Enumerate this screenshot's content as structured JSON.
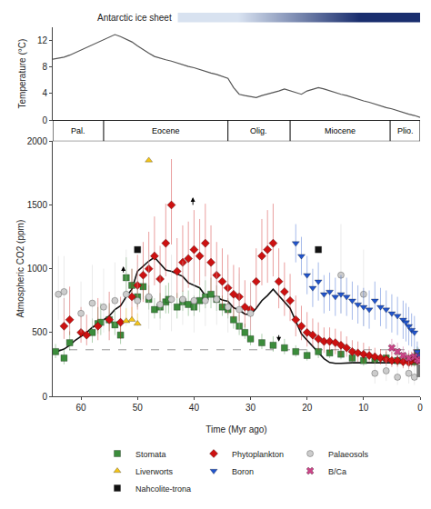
{
  "chart_data": [
    {
      "type": "gradient",
      "annotations": [
        "Antarctic ice sheet"
      ],
      "colors": [
        "#d8e2f0",
        "#1a2e6e"
      ]
    },
    {
      "type": "line",
      "ylabel": "Temperature (°C)",
      "x": [
        65,
        64,
        63,
        62,
        61,
        60,
        59,
        58,
        57,
        56,
        55,
        54,
        53,
        52,
        51,
        50,
        49,
        48,
        47,
        46,
        45,
        44,
        43,
        42,
        41,
        40,
        39,
        38,
        37,
        36,
        35,
        34,
        33,
        32,
        31,
        30,
        29,
        28,
        27,
        26,
        25,
        24,
        23,
        22,
        21,
        20,
        19,
        18,
        17,
        16,
        15,
        14,
        13,
        12,
        11,
        10,
        9,
        8,
        7,
        6,
        5,
        4,
        3,
        2,
        1,
        0
      ],
      "values": [
        9.2,
        9.3,
        9.5,
        9.8,
        10.2,
        10.6,
        11.0,
        11.3,
        11.8,
        12.2,
        12.6,
        12.9,
        12.6,
        12.2,
        11.8,
        11.2,
        10.6,
        10.1,
        9.6,
        9.3,
        9.1,
        8.9,
        8.6,
        8.3,
        8.1,
        7.9,
        7.6,
        7.3,
        7.1,
        6.9,
        6.6,
        6.3,
        4.9,
        3.9,
        3.7,
        3.5,
        3.4,
        3.7,
        3.9,
        4.1,
        4.4,
        4.7,
        4.4,
        4.1,
        3.9,
        4.4,
        4.7,
        4.9,
        4.7,
        4.4,
        4.1,
        3.9,
        3.7,
        3.4,
        3.1,
        2.9,
        2.7,
        2.4,
        2.1,
        1.9,
        1.7,
        1.4,
        1.1,
        0.9,
        0.7,
        0.4
      ],
      "color": "#555555",
      "xlim": [
        65,
        0
      ],
      "ylim": [
        0,
        14
      ],
      "yticks": [
        0,
        4,
        8,
        12
      ],
      "tick_labels": "y",
      "grid": false
    },
    {
      "type": "band",
      "categories": [
        "Pal.",
        "Eocene",
        "Olig.",
        "Miocene",
        "Plio."
      ],
      "bins": [
        65,
        56,
        34,
        23,
        5.3,
        0
      ],
      "xlim": [
        65,
        0
      ]
    },
    {
      "type": "scatter",
      "xlabel": "Time (Myr ago)",
      "ylabel": "Atmospheric CO2 (ppm)",
      "xlim": [
        65,
        0
      ],
      "ylim": [
        0,
        2000
      ],
      "xticks": [
        60,
        50,
        40,
        30,
        20,
        10,
        0
      ],
      "yticks": [
        0,
        500,
        1000,
        1500,
        2000
      ],
      "grid": false,
      "legend": "bottom",
      "series": [
        {
          "type": "line",
          "color": "#111111",
          "x": [
            65,
            64,
            63,
            62,
            61,
            60,
            59,
            58,
            57,
            56,
            55,
            54,
            53,
            52,
            51,
            50,
            49,
            48,
            47,
            46,
            45,
            44,
            43,
            42,
            41,
            40,
            39,
            38,
            37,
            36,
            35,
            34,
            33,
            32,
            31,
            30,
            29,
            28,
            27,
            26,
            25,
            24,
            23,
            22,
            21,
            20,
            19,
            18,
            17,
            16,
            15,
            14,
            13,
            12,
            11,
            10,
            9,
            8,
            7,
            6,
            5,
            4,
            3,
            2,
            1,
            0.5,
            0
          ],
          "values": [
            350,
            355,
            370,
            400,
            440,
            470,
            500,
            540,
            570,
            595,
            630,
            680,
            710,
            780,
            840,
            980,
            1020,
            1060,
            1090,
            1040,
            990,
            980,
            960,
            940,
            890,
            870,
            850,
            790,
            790,
            775,
            755,
            745,
            695,
            675,
            645,
            640,
            690,
            750,
            790,
            840,
            790,
            740,
            690,
            590,
            490,
            440,
            390,
            340,
            295,
            265,
            258,
            258,
            263,
            263,
            263,
            263,
            263,
            263,
            263,
            263,
            263,
            263,
            263,
            263,
            263,
            263,
            263
          ]
        },
        {
          "name": "Stomata",
          "type": "scatter",
          "marker": "square",
          "color": "#3b8c3b",
          "x": [
            64.5,
            63,
            62,
            58,
            57,
            56.5,
            55,
            54,
            53,
            52,
            51,
            50,
            49,
            48,
            47,
            46,
            45,
            44.5,
            43,
            42,
            41,
            40,
            39,
            38,
            37,
            36,
            35,
            34,
            33,
            32,
            31,
            30,
            28,
            26,
            24,
            22,
            20,
            18,
            16,
            14,
            12,
            10,
            8,
            6,
            4,
            2,
            1,
            0.5
          ],
          "values": [
            350,
            300,
            420,
            500,
            570,
            580,
            600,
            560,
            480,
            930,
            870,
            780,
            860,
            760,
            680,
            700,
            740,
            760,
            700,
            740,
            720,
            700,
            750,
            780,
            800,
            760,
            700,
            680,
            600,
            550,
            500,
            450,
            420,
            400,
            380,
            350,
            320,
            350,
            340,
            330,
            300,
            280,
            290,
            300,
            280,
            290,
            270,
            340
          ],
          "error_plus": [
            60,
            70,
            90,
            110,
            130,
            150,
            130,
            110,
            90,
            160,
            130,
            110,
            130,
            110,
            90,
            110,
            130,
            130,
            110,
            90,
            110,
            90,
            110,
            130,
            130,
            110,
            90,
            90,
            90,
            90,
            70,
            70,
            70,
            70,
            70,
            50,
            50,
            70,
            50,
            50,
            50,
            50,
            50,
            50,
            50,
            50,
            50,
            50
          ],
          "error_minus": [
            50,
            50,
            60,
            80,
            80,
            100,
            90,
            80,
            70,
            120,
            100,
            80,
            100,
            80,
            70,
            90,
            90,
            110,
            90,
            70,
            90,
            70,
            90,
            90,
            110,
            90,
            70,
            70,
            70,
            70,
            50,
            50,
            50,
            50,
            50,
            40,
            40,
            50,
            40,
            40,
            40,
            40,
            40,
            40,
            40,
            40,
            40,
            40
          ]
        },
        {
          "name": "Phytoplankton",
          "type": "scatter",
          "marker": "diamond",
          "color": "#cc1111",
          "x": [
            63,
            62,
            60,
            59,
            57,
            55,
            53,
            51,
            50,
            49,
            48,
            47,
            46,
            45,
            44,
            43,
            42,
            41,
            40,
            39,
            38,
            37,
            36,
            35,
            34,
            33,
            32,
            31,
            30,
            29,
            28,
            27,
            26,
            25,
            24,
            23,
            22,
            21,
            20,
            19,
            18,
            17,
            16,
            15,
            14,
            13,
            12,
            11,
            10,
            9,
            8,
            7,
            6,
            5,
            4,
            3,
            2,
            1.5,
            1,
            0.5,
            0.2
          ],
          "values": [
            550,
            600,
            500,
            480,
            550,
            600,
            580,
            780,
            870,
            950,
            1000,
            1100,
            920,
            1200,
            1500,
            980,
            1050,
            1080,
            1150,
            1100,
            1200,
            1050,
            950,
            900,
            850,
            800,
            780,
            700,
            680,
            900,
            1100,
            1150,
            1200,
            900,
            820,
            750,
            600,
            550,
            500,
            480,
            450,
            430,
            430,
            420,
            400,
            380,
            350,
            340,
            330,
            320,
            310,
            300,
            290,
            280,
            280,
            270,
            265,
            280,
            290,
            280,
            300
          ],
          "error_plus": [
            220,
            260,
            200,
            160,
            220,
            220,
            200,
            220,
            240,
            260,
            290,
            310,
            260,
            310,
            360,
            260,
            290,
            290,
            310,
            290,
            310,
            290,
            260,
            260,
            260,
            230,
            230,
            210,
            210,
            260,
            290,
            310,
            310,
            260,
            230,
            210,
            190,
            160,
            160,
            130,
            130,
            110,
            110,
            110,
            110,
            90,
            90,
            90,
            90,
            70,
            70,
            70,
            70,
            70,
            70,
            70,
            70,
            70,
            70,
            70,
            70
          ],
          "error_minus": [
            100,
            120,
            80,
            80,
            110,
            160,
            130,
            160,
            190,
            210,
            210,
            230,
            210,
            260,
            310,
            210,
            230,
            230,
            260,
            230,
            260,
            230,
            210,
            210,
            210,
            190,
            190,
            160,
            160,
            210,
            230,
            260,
            260,
            210,
            190,
            160,
            130,
            110,
            110,
            90,
            90,
            90,
            90,
            90,
            90,
            70,
            70,
            70,
            70,
            50,
            50,
            50,
            50,
            50,
            50,
            50,
            50,
            50,
            50,
            50,
            50
          ]
        },
        {
          "name": "Palaeosols",
          "type": "scatter",
          "marker": "circle",
          "color": "#cccccc",
          "x": [
            64,
            63,
            60,
            58,
            56,
            54,
            52,
            50,
            48,
            46,
            44,
            42,
            40,
            38,
            36,
            34,
            32,
            30,
            14,
            10,
            8,
            6,
            4,
            2,
            1
          ],
          "values": [
            800,
            820,
            650,
            730,
            700,
            750,
            800,
            750,
            780,
            720,
            760,
            760,
            750,
            750,
            760,
            700,
            680,
            650,
            950,
            800,
            180,
            200,
            150,
            180,
            150
          ],
          "error_plus": [
            300,
            280,
            250,
            300,
            300,
            300,
            350,
            300,
            350,
            300,
            350,
            300,
            350,
            300,
            300,
            300,
            280,
            250,
            400,
            350,
            100,
            100,
            80,
            100,
            80
          ],
          "error_minus": [
            200,
            180,
            150,
            200,
            200,
            200,
            250,
            200,
            250,
            200,
            250,
            200,
            250,
            200,
            200,
            200,
            180,
            150,
            300,
            250,
            80,
            80,
            60,
            80,
            60
          ]
        },
        {
          "name": "Liverworts",
          "type": "scatter",
          "marker": "triangle-up",
          "color": "#f5c518",
          "x": [
            52,
            51,
            50,
            48
          ],
          "values": [
            590,
            600,
            570,
            1850
          ],
          "error_plus": [
            100,
            100,
            80,
            0
          ],
          "error_minus": [
            0,
            0,
            0,
            0
          ]
        },
        {
          "name": "Boron",
          "type": "scatter",
          "marker": "triangle-down",
          "color": "#2255cc",
          "x": [
            22,
            21,
            20,
            19,
            18,
            17,
            16,
            15,
            14,
            13,
            12,
            11,
            10,
            9,
            8,
            7,
            6,
            5,
            4,
            3,
            2.5,
            2,
            1.5,
            1,
            0.5,
            0.3
          ],
          "values": [
            1200,
            1100,
            950,
            850,
            900,
            800,
            820,
            780,
            800,
            780,
            750,
            720,
            700,
            680,
            750,
            700,
            680,
            650,
            630,
            600,
            580,
            550,
            520,
            500,
            350,
            320
          ],
          "error_plus": [
            150,
            150,
            150,
            150,
            150,
            150,
            150,
            150,
            150,
            150,
            150,
            150,
            150,
            150,
            150,
            150,
            150,
            150,
            150,
            150,
            150,
            150,
            130,
            130,
            80,
            60
          ],
          "error_minus": [
            150,
            150,
            150,
            150,
            150,
            150,
            150,
            150,
            150,
            150,
            150,
            150,
            150,
            150,
            150,
            150,
            150,
            150,
            150,
            150,
            150,
            150,
            130,
            130,
            80,
            60
          ]
        },
        {
          "name": "B/Ca",
          "type": "scatter",
          "marker": "x",
          "color": "#cc4488",
          "x": [
            5,
            4,
            3,
            2,
            1,
            0.5,
            0.2
          ],
          "values": [
            380,
            350,
            320,
            300,
            310,
            290,
            280
          ],
          "error_plus": [
            70,
            70,
            70,
            60,
            60,
            60,
            60
          ],
          "error_minus": [
            50,
            50,
            50,
            40,
            40,
            40,
            40
          ]
        },
        {
          "name": "Nahcolite-trona",
          "type": "scatter",
          "marker": "square",
          "color": "#111111",
          "x": [
            50,
            18
          ],
          "values": [
            1150,
            1150
          ]
        }
      ],
      "reference_lines": [
        {
          "y": 365,
          "color": "#999999",
          "line_style": "dashed"
        }
      ],
      "arrows": [
        {
          "x": 52.5,
          "from": 960,
          "to": 1020
        },
        {
          "x": 40.2,
          "from": 1490,
          "to": 1560
        },
        {
          "x": 25,
          "from": 490,
          "to": 430
        }
      ],
      "rectangles": [
        {
          "x": 0,
          "y": 150,
          "width": 0.6,
          "height": 100,
          "color": "#777777"
        }
      ]
    }
  ]
}
